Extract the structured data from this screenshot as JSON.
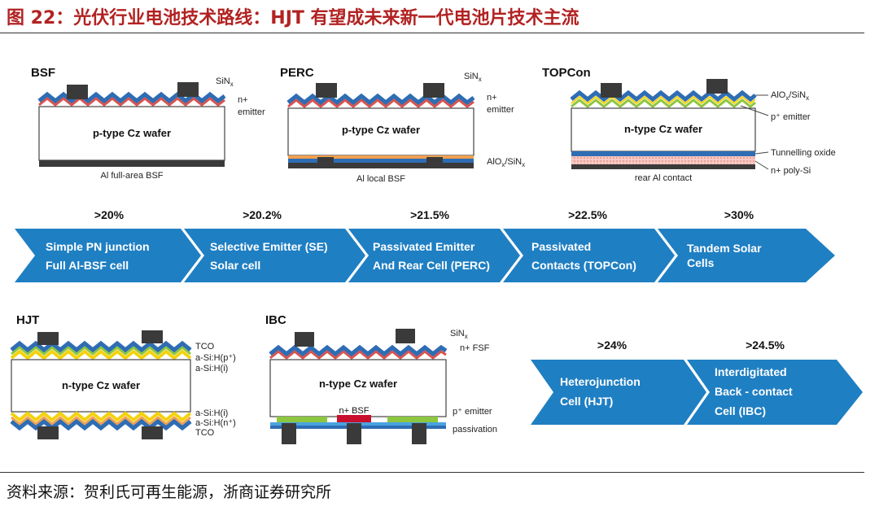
{
  "title": "图 22：光伏行业电池技术路线：HJT 有望成未来新一代电池片技术主流",
  "source": "资料来源：贺利氏可再生能源，浙商证券研究所",
  "colors": {
    "arrow": "#1f7fc3",
    "title": "#b22222",
    "blue": "#2e6db4",
    "red": "#d9534f",
    "green": "#8dc63f",
    "yellow": "#f4d20c",
    "dark": "#3a3a3a"
  },
  "cells": {
    "bsf": {
      "name": "BSF",
      "wafer": "p-type Cz wafer",
      "sinx": "SiN",
      "sinx_sub": "x",
      "nplus": "n+",
      "emitter": "emitter",
      "bottom": "Al full-area BSF"
    },
    "perc": {
      "name": "PERC",
      "wafer": "p-type Cz wafer",
      "sinx": "SiN",
      "sinx_sub": "x",
      "nplus": "n+",
      "emitter": "emitter",
      "alox": "AlO",
      "alox_sub": "x",
      "alox_slash": "/SiN",
      "alox_sub2": "x",
      "bottom": "Al local BSF"
    },
    "topcon": {
      "name": "TOPCon",
      "wafer": "n-type Cz wafer",
      "alox": "AlO",
      "alox_sub": "x",
      "alox_slash": "/SiN",
      "alox_sub2": "x",
      "pemitter": "p⁺ emitter",
      "tunnel": "Tunnelling oxide",
      "poly": "n+ poly-Si",
      "bottom": "rear Al contact"
    },
    "hjt": {
      "name": "HJT",
      "wafer": "n-type Cz wafer",
      "tco_top": "TCO",
      "asi_p": "a-Si:H(p⁺)",
      "asi_i_top": "a-Si:H(i)",
      "asi_i_bot": "a-Si:H(i)",
      "asi_n": "a-Si:H(n⁺)",
      "tco_bot": "TCO"
    },
    "ibc": {
      "name": "IBC",
      "wafer": "n-type Cz wafer",
      "sinx": "SiN",
      "sinx_sub": "x",
      "fsf": "n+ FSF",
      "nbsf": "n+ BSF",
      "pemitter": "p⁺ emitter",
      "passivation": "passivation"
    }
  },
  "roadmap_top": {
    "efficiencies": [
      ">20%",
      ">20.2%",
      ">21.5%",
      ">22.5%",
      ">30%"
    ],
    "stages": [
      {
        "line1": "Simple PN junction",
        "line2": "Full Al-BSF cell"
      },
      {
        "line1": "Selective Emitter (SE)",
        "line2": "Solar cell"
      },
      {
        "line1": "Passivated Emitter",
        "line2": "And Rear Cell (PERC)"
      },
      {
        "line1": "Passivated",
        "line2": "Contacts (TOPCon)"
      },
      {
        "line1": "Tandem Solar",
        "line2": "Cells"
      }
    ]
  },
  "roadmap_bottom": {
    "efficiencies": [
      ">24%",
      ">24.5%"
    ],
    "stages": [
      {
        "line1": "Heterojunction",
        "line2": "Cell (HJT)",
        "line3": ""
      },
      {
        "line1": "Interdigitated",
        "line2": "Back - contact",
        "line3": "Cell (IBC)"
      }
    ]
  }
}
